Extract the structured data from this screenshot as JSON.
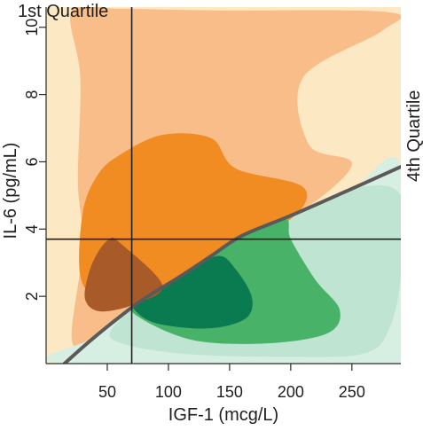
{
  "chart_data": {
    "type": "contour",
    "xlabel": "IGF-1 (mcg/L)",
    "ylabel": "IL-6 (pg/mL)",
    "xlim": [
      0,
      290
    ],
    "ylim": [
      0,
      10.6
    ],
    "x_ticks": [
      50,
      100,
      150,
      200,
      250
    ],
    "y_ticks": [
      2,
      4,
      6,
      8,
      10
    ],
    "grid": false,
    "annotations": {
      "q1_label": "1st Quartile",
      "q4_label": "4th Quartile"
    },
    "reference_lines": {
      "vertical_x": 70,
      "horizontal_y": 3.7
    },
    "boundary_line": {
      "color": "#5a5a5a",
      "points": [
        [
          15,
          0
        ],
        [
          40,
          0.8
        ],
        [
          75,
          1.8
        ],
        [
          110,
          2.6
        ],
        [
          135,
          3.2
        ],
        [
          160,
          3.8
        ],
        [
          200,
          4.4
        ],
        [
          250,
          5.2
        ],
        [
          290,
          5.85
        ]
      ]
    },
    "region_colors": {
      "orange_light": "#fde8c4",
      "orange_mid": "#f9bd8a",
      "orange_dark": "#f08c22",
      "orange_core": "#a85a28",
      "green_light": "#d7eee3",
      "green_mid": "#bfe4d1",
      "green_dark": "#48b368",
      "green_core": "#0a7a51"
    },
    "regions": {
      "orange_outer_layer": [
        [
          21,
          10.5
        ],
        [
          60,
          10.55
        ],
        [
          140,
          10.5
        ],
        [
          280,
          10.45
        ],
        [
          275,
          9.9
        ],
        [
          210,
          8.5
        ],
        [
          215,
          6.5
        ],
        [
          250,
          5.9
        ],
        [
          200,
          4.3
        ],
        [
          140,
          3.2
        ],
        [
          75,
          1.8
        ],
        [
          40,
          0.8
        ],
        [
          21,
          0.7
        ],
        [
          30,
          3.5
        ],
        [
          26,
          5.4
        ],
        [
          28,
          8.5
        ]
      ],
      "orange_middle_layer": [
        [
          30,
          4.5
        ],
        [
          42,
          5.6
        ],
        [
          60,
          6.2
        ],
        [
          95,
          6.8
        ],
        [
          135,
          6.7
        ],
        [
          155,
          5.8
        ],
        [
          210,
          5.25
        ],
        [
          200,
          4.3
        ],
        [
          140,
          3.2
        ],
        [
          80,
          1.9
        ],
        [
          45,
          1.9
        ],
        [
          28,
          2.6
        ]
      ],
      "orange_inner_core": [
        [
          35,
          2.7
        ],
        [
          43,
          3.35
        ],
        [
          52,
          3.7
        ],
        [
          60,
          3.6
        ],
        [
          95,
          2.35
        ],
        [
          75,
          1.8
        ],
        [
          45,
          1.55
        ],
        [
          32,
          1.9
        ]
      ],
      "green_outer_layer": [
        [
          15,
          0
        ],
        [
          290,
          0
        ],
        [
          290,
          5.85
        ],
        [
          250,
          5.2
        ],
        [
          200,
          4.4
        ],
        [
          160,
          3.8
        ],
        [
          135,
          3.2
        ],
        [
          110,
          2.6
        ],
        [
          75,
          1.8
        ],
        [
          40,
          0.8
        ]
      ],
      "green_mid_layer": [
        [
          55,
          0.7
        ],
        [
          110,
          0.3
        ],
        [
          200,
          0.2
        ],
        [
          260,
          0.3
        ],
        [
          280,
          1.0
        ],
        [
          290,
          2.6
        ],
        [
          290,
          5.0
        ],
        [
          250,
          5.2
        ],
        [
          200,
          4.4
        ],
        [
          160,
          3.8
        ],
        [
          110,
          2.6
        ],
        [
          75,
          1.8
        ],
        [
          60,
          1.3
        ]
      ],
      "green_dark_layer": [
        [
          75,
          1.4
        ],
        [
          120,
          0.7
        ],
        [
          180,
          0.6
        ],
        [
          230,
          0.9
        ],
        [
          240,
          1.6
        ],
        [
          220,
          2.5
        ],
        [
          200,
          3.7
        ],
        [
          195,
          4.3
        ],
        [
          160,
          3.8
        ],
        [
          135,
          3.2
        ],
        [
          110,
          2.6
        ],
        [
          75,
          1.8
        ]
      ],
      "green_core": [
        [
          75,
          1.5
        ],
        [
          90,
          1.2
        ],
        [
          120,
          1.05
        ],
        [
          145,
          1.1
        ],
        [
          165,
          1.4
        ],
        [
          168,
          2.0
        ],
        [
          155,
          2.8
        ],
        [
          140,
          3.2
        ],
        [
          110,
          2.6
        ],
        [
          75,
          1.8
        ]
      ]
    }
  }
}
